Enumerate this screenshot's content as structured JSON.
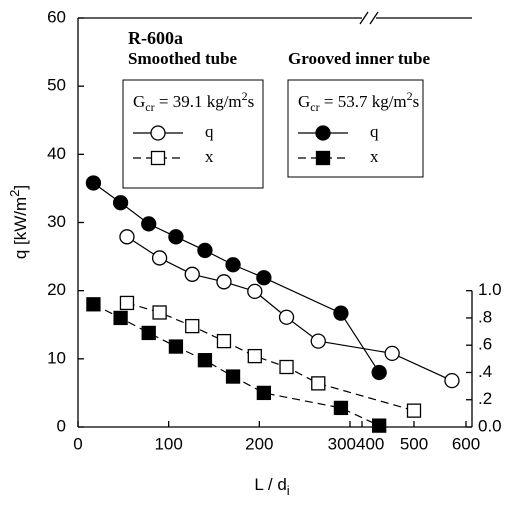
{
  "chart_data": {
    "type": "scatter",
    "title": "R-600a",
    "xlabel": {
      "text": "L / d",
      "subscript": "i"
    },
    "ylabel": {
      "text": "q  [kW/m",
      "power": "2",
      "end": "]"
    },
    "xlim": [
      0,
      600
    ],
    "x_break": [
      300,
      400
    ],
    "xticks": [
      0,
      100,
      200,
      300,
      400,
      500,
      600
    ],
    "ylim": [
      0,
      60
    ],
    "yticks": [
      0,
      10,
      20,
      30,
      40,
      50,
      60
    ],
    "y2lim": [
      0,
      3
    ],
    "y2ticks": [
      {
        "value": 0,
        "label": "0.0"
      },
      {
        "value": 0.2,
        "label": ".2"
      },
      {
        "value": 0.4,
        "label": ".4"
      },
      {
        "value": 0.6,
        "label": ".6"
      },
      {
        "value": 0.8,
        "label": ".8"
      },
      {
        "value": 1,
        "label": "1.0"
      }
    ],
    "groups": [
      {
        "title": "Smoothed tube",
        "legend": {
          "symbol": "G",
          "subscript": "cr",
          "value": " = 39.1 kg/m",
          "power": "2",
          "unit": "s"
        }
      },
      {
        "title": "Grooved inner tube",
        "legend": {
          "symbol": "G",
          "subscript": "cr",
          "value": " = 53.7 kg/m",
          "power": "2",
          "unit": "s"
        }
      }
    ],
    "series": [
      {
        "name": "q",
        "group": 0,
        "marker": "circle",
        "filled": false,
        "dashed": false,
        "color": "#000000",
        "x": [
          54,
          90,
          126,
          161,
          195,
          230,
          265,
          458,
          573
        ],
        "values": [
          27.9,
          24.8,
          22.4,
          21.3,
          19.9,
          16.1,
          12.6,
          10.8,
          6.8
        ]
      },
      {
        "name": "x",
        "group": 0,
        "marker": "square",
        "filled": false,
        "dashed": true,
        "color": "#000000",
        "axis": "y2",
        "x": [
          54,
          90,
          126,
          161,
          195,
          230,
          265,
          500
        ],
        "values": [
          0.91,
          0.84,
          0.74,
          0.63,
          0.52,
          0.44,
          0.32,
          0.12
        ]
      },
      {
        "name": "q",
        "group": 1,
        "marker": "circle",
        "filled": true,
        "dashed": false,
        "color": "#000000",
        "x": [
          17,
          47,
          78,
          108,
          140,
          171,
          205,
          290,
          433
        ],
        "values": [
          35.8,
          32.9,
          29.8,
          27.9,
          25.9,
          23.8,
          21.9,
          16.7,
          8.0
        ]
      },
      {
        "name": "x",
        "group": 1,
        "marker": "square",
        "filled": true,
        "dashed": true,
        "color": "#000000",
        "axis": "y2",
        "x": [
          17,
          47,
          78,
          108,
          140,
          171,
          205,
          290,
          433
        ],
        "values": [
          0.9,
          0.8,
          0.69,
          0.59,
          0.49,
          0.37,
          0.25,
          0.14,
          0.01
        ]
      }
    ]
  }
}
